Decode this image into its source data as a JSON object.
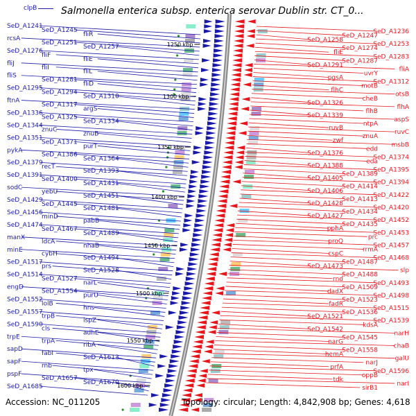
{
  "title": "Salmonella enterica subsp. enterica serovar Dublin str. CT_0...",
  "corner_label": "clpB",
  "accession": "Accession: NC_011205",
  "topology": "Topology: circular; Length: 4,842,908 bp; Genes: 4,618",
  "colors": {
    "forward": "#1a1aa8",
    "reverse": "#e8161b",
    "backbone": "#8c8c8c"
  },
  "ruler": [
    {
      "text": "1250 kbp"
    },
    {
      "text": "1300 kbp"
    },
    {
      "text": "1350 kbp"
    },
    {
      "text": "1400 kbp"
    },
    {
      "text": "1450 kbp"
    },
    {
      "text": "1500 kbp"
    },
    {
      "text": "1550 kbp"
    },
    {
      "text": "1600 kbp"
    }
  ],
  "left_labels": [
    "SeD_A1241",
    "SeD_A1245",
    "fliR",
    "rcsA",
    "SeD_A1251",
    "SeD_A1257",
    "SeD_A1276",
    "fliF",
    "fliE",
    "fliJ",
    "fliI",
    "fliL",
    "fliS",
    "SeD_A1281",
    "fliD",
    "SeD_A1295",
    "SeD_A1294",
    "SeD_A1310",
    "ftnA",
    "SeD_A1317",
    "argS",
    "SeD_A1336",
    "SeD_A1325",
    "SeD_A1334",
    "SeD_A1344",
    "znuC",
    "znuB",
    "SeD_A1351",
    "SeD_A1371",
    "purT",
    "pykA",
    "SeD_A1386",
    "SeD_A1364",
    "SeD_A1379",
    "recT",
    "SeD_A1393",
    "SeD_A1391",
    "SeD_A1400",
    "SeD_A1431",
    "sodC",
    "yebU",
    "SeD_A1451",
    "SeD_A1429",
    "SeD_A1445",
    "SeD_A1481",
    "SeD_A1456",
    "minD",
    "pabB",
    "SeD_A1474",
    "SeD_A1467",
    "SeD_A1489",
    "manX",
    "ldcA",
    "nhaB",
    "minE",
    "cybH",
    "SeD_A1494",
    "SeD_A1517",
    "prs",
    "SeD_A1528",
    "SeD_A1514",
    "SeD_A1527",
    "narL",
    "engD",
    "SeD_A1554",
    "purU",
    "SeD_A1552",
    "lolB",
    "hns",
    "SeD_A1557",
    "trpB",
    "ispZ",
    "SeD_A1590",
    "cls",
    "adhE",
    "trpE",
    "trpA",
    "ribA",
    "sapD",
    "fabI",
    "SeD_A1613",
    "sapF",
    "rnb",
    "tpx",
    "pspF",
    "SeD_A1657",
    "SeD_A1670",
    "SeD_A1685"
  ],
  "right_labels": [
    "SeD_A1236",
    "SeD_A1247",
    "SeD_A1258",
    "SeD_A1253",
    "SeD_A1274",
    "fliE",
    "SeD_A1283",
    "SeD_A1287",
    "SeD_A1291",
    "fliA",
    "uvrY",
    "pgsA",
    "SeD_A1312",
    "motB",
    "flhC",
    "otsB",
    "cheB",
    "SeD_A1326",
    "flhA",
    "flhB",
    "SeD_A1339",
    "aspS",
    "ntpA",
    "ruvB",
    "ruvC",
    "znuA",
    "zwf",
    "msbB",
    "edd",
    "SeD_A1376",
    "SeD_A1374",
    "eda",
    "SeD_A1388",
    "SeD_A1395",
    "SeD_A1389",
    "SeD_A1405",
    "SeD_A1394",
    "SeD_A1414",
    "SeD_A1406",
    "SeD_A1422",
    "SeD_A1413",
    "SeD_A1428",
    "SeD_A1420",
    "SeD_A1434",
    "SeD_A1427",
    "SeD_A1452",
    "SeD_A1435",
    "pphA",
    "SeD_A1453",
    "prc",
    "proQ",
    "SeD_A1457",
    "rrmA",
    "cspC",
    "SeD_A1468",
    "SeD_A1487",
    "SeD_A1473",
    "slp",
    "SeD_A1488",
    "rnd",
    "SeD_A1493",
    "SeD_A1509",
    "dadX",
    "SeD_A1498",
    "SeD_A1523",
    "fadR",
    "SeD_A1515",
    "SeD_A1536",
    "SeD_A1521",
    "SeD_A1539",
    "kdsA",
    "SeD_A1542",
    "narH",
    "SeD_A1545",
    "narG",
    "chaB",
    "SeD_A1558",
    "hemA",
    "galU",
    "narJ",
    "prfA",
    "SeD_A1596",
    "oppB",
    "tdk",
    "narI",
    "sirB1"
  ]
}
